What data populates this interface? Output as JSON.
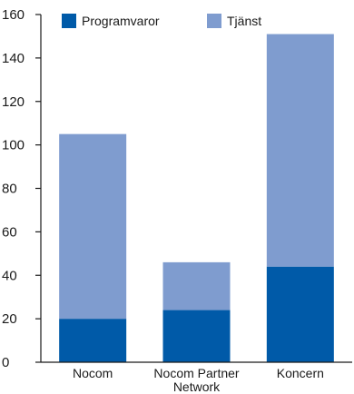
{
  "chart_data": {
    "type": "bar",
    "stacked": true,
    "categories": [
      [
        "Nocom"
      ],
      [
        "Nocom Partner",
        "Network"
      ],
      [
        "Koncern"
      ]
    ],
    "series": [
      {
        "name": "Programvaror",
        "values": [
          20,
          24,
          44
        ],
        "color": "#005aa8"
      },
      {
        "name": "Tjänst",
        "values": [
          85,
          22,
          107
        ],
        "color": "#7f9ccf"
      }
    ],
    "ylim": [
      0,
      160
    ],
    "yticks": [
      0,
      20,
      40,
      60,
      80,
      100,
      120,
      140,
      160
    ],
    "xlabel": "",
    "ylabel": "",
    "title": "",
    "grid": false,
    "legend": "top"
  }
}
